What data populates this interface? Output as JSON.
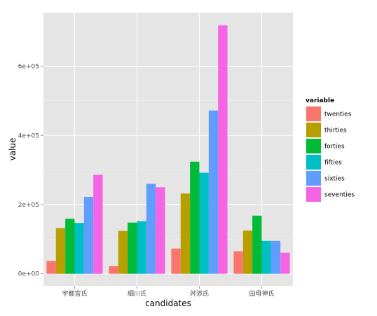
{
  "chart_data": {
    "type": "bar",
    "xlabel": "candidates",
    "ylabel": "value",
    "categories": [
      "宇都宮氏",
      "細川氏",
      "舛添氏",
      "田母神氏"
    ],
    "y_ticks": [
      {
        "value": 0,
        "label": "0e+00"
      },
      {
        "value": 200000,
        "label": "2e+05"
      },
      {
        "value": 400000,
        "label": "4e+05"
      },
      {
        "value": 600000,
        "label": "6e+05"
      }
    ],
    "ylim": [
      -35000,
      755000
    ],
    "grid": true,
    "legend": {
      "title": "variable",
      "position": "right"
    },
    "series": [
      {
        "name": "twenties",
        "color": "#F8766D",
        "values": [
          37000,
          22000,
          73000,
          65000
        ]
      },
      {
        "name": "thirties",
        "color": "#B79F00",
        "values": [
          132000,
          124000,
          232000,
          125000
        ]
      },
      {
        "name": "forties",
        "color": "#00BA38",
        "values": [
          159000,
          148000,
          324000,
          168000
        ]
      },
      {
        "name": "fifties",
        "color": "#00BFC4",
        "values": [
          147000,
          152000,
          292000,
          95000
        ]
      },
      {
        "name": "sixties",
        "color": "#619CFF",
        "values": [
          222000,
          260000,
          472000,
          95000
        ]
      },
      {
        "name": "seventies",
        "color": "#F564E3",
        "values": [
          286000,
          250000,
          718000,
          61000
        ]
      }
    ]
  }
}
